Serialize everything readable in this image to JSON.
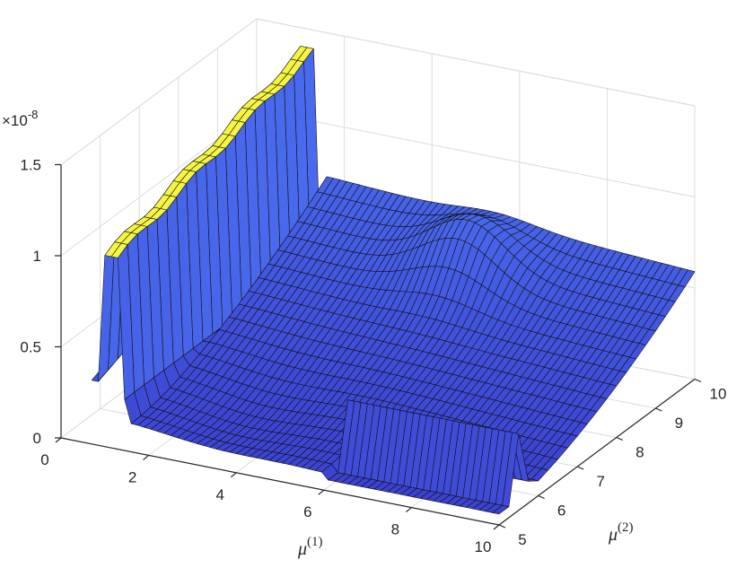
{
  "chart_data": {
    "type": "surface",
    "title": "",
    "xlabel": "μ",
    "xlabel_sup": "(1)",
    "ylabel": "μ",
    "ylabel_sup": "(2)",
    "zlabel": "",
    "z_multiplier": "×10",
    "z_multiplier_exp": "-8",
    "xlim": [
      0,
      10
    ],
    "ylim": [
      5,
      10
    ],
    "zlim": [
      0,
      1.5
    ],
    "x_ticks": [
      0,
      2,
      4,
      6,
      8,
      10
    ],
    "x_tick_labels": [
      "0",
      "2",
      "4",
      "6",
      "8",
      "10"
    ],
    "y_ticks": [
      5,
      6,
      7,
      8,
      9,
      10
    ],
    "y_tick_labels": [
      "5",
      "6",
      "7",
      "8",
      "9",
      "10"
    ],
    "z_ticks": [
      0,
      0.5,
      1,
      1.5
    ],
    "z_tick_labels": [
      "0",
      "0.5",
      "1",
      "1.5"
    ],
    "grid": true,
    "colormap": "parula",
    "color_low": "#3a3fcf",
    "color_high": "#f5f542",
    "x_grid": [
      0.7,
      0.85,
      1,
      1.15,
      1.3,
      1.45,
      1.6,
      1.75,
      1.9,
      2.05,
      2.2,
      2.35,
      2.5,
      2.65,
      2.8,
      2.95,
      3.1,
      3.25,
      3.4,
      3.55,
      3.7,
      3.85,
      4,
      4.15,
      4.3,
      4.45,
      4.6,
      4.75,
      4.9,
      5.05,
      5.2,
      5.35,
      5.5,
      5.65,
      5.8,
      5.95,
      6.1,
      6.25,
      6.4,
      6.55,
      6.7,
      6.85,
      7,
      7.15,
      7.3,
      7.45,
      7.6,
      7.75,
      7.9,
      8.05,
      8.2,
      8.35,
      8.5,
      8.65,
      8.8,
      8.95,
      9.1,
      9.25,
      9.4,
      9.55,
      9.7,
      9.85,
      10
    ],
    "y_grid": [
      5,
      5.25,
      5.5,
      5.75,
      6,
      6.25,
      6.5,
      6.75,
      7,
      7.25,
      7.5,
      7.75,
      8,
      8.25,
      8.5,
      8.75,
      9,
      9.25,
      9.5,
      9.75,
      10
    ],
    "z_description_units": "×10^-8"
  }
}
